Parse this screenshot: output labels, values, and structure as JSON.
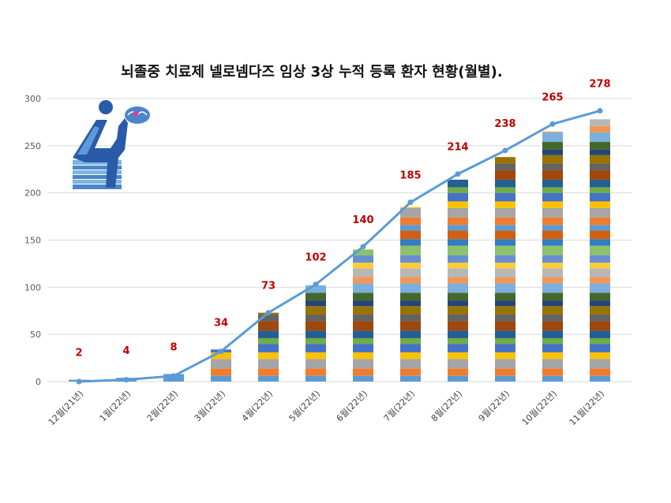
{
  "chart_data": {
    "type": "bar",
    "title": "뇌졸중 치료제 넬로넴다즈 임상 3상 누적 등록 환자 현황(월별).",
    "categories": [
      "12월(21년)",
      "1월(22년)",
      "2월(22년)",
      "3월(22년)",
      "4월(22년)",
      "5월(22년)",
      "6월(22년)",
      "7월(22년)",
      "8월(22년)",
      "9월(22년)",
      "10월(22년)",
      "11월(22년)"
    ],
    "totals": [
      2,
      4,
      8,
      34,
      73,
      102,
      140,
      185,
      214,
      238,
      265,
      278
    ],
    "trend_line": [
      0,
      2,
      6,
      32,
      73,
      103,
      143,
      190,
      220,
      245,
      273,
      287
    ],
    "stacked": true,
    "segment_colors": [
      "#5b9bd5",
      "#ed7d31",
      "#a5a5a5",
      "#ffc000",
      "#4472c4",
      "#70ad47",
      "#255e91",
      "#9e480e",
      "#636363",
      "#997300",
      "#264478",
      "#43682b",
      "#7cafdd",
      "#f1975a",
      "#b7b7b7",
      "#ffcd33",
      "#698ed0",
      "#8cc168",
      "#327dc2",
      "#d26012"
    ],
    "ylim": [
      0,
      300
    ],
    "yticks": [
      0,
      50,
      100,
      150,
      200,
      250,
      300
    ],
    "grid": true,
    "legend": "none",
    "total_label_color": "#c00000",
    "line_color": "#5b9bd5"
  }
}
